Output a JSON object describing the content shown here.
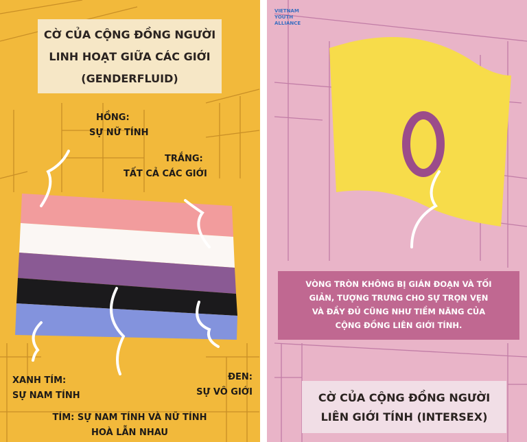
{
  "logo": [
    "VIETNAM",
    "YOUTH",
    "ALLIANCE"
  ],
  "left": {
    "title": [
      "CỜ CỦA CỘNG ĐỒNG NGƯỜI",
      "LINH HOẠT GIỮA CÁC GIỚI",
      "(GENDERFLUID)"
    ],
    "labels": [
      {
        "head": "HỒNG:",
        "text": [
          "SỰ NỮ TÍNH"
        ]
      },
      {
        "head": "TRẮNG:",
        "text": [
          "TẤT CẢ CÁC GIỚI"
        ]
      },
      {
        "head": "XANH TÍM:",
        "text": [
          "SỰ NAM TÍNH"
        ]
      },
      {
        "head": "ĐEN:",
        "text": [
          "SỰ VÔ GIỚI"
        ]
      },
      {
        "head": "TÍM: SỰ NAM TÍNH VÀ NỮ TÍNH",
        "text": [
          "HOÀ LẪN NHAU"
        ]
      }
    ]
  },
  "right": {
    "description": [
      "VÒNG TRÒN KHÔNG BỊ GIÁN ĐOẠN VÀ TỐI",
      "GIẢN, TƯỢNG TRƯNG CHO SỰ TRỌN VẸN",
      "VÀ ĐẦY ĐỦ CŨNG NHƯ TIỀM NĂNG CỦA",
      "CỘNG ĐỒNG LIÊN GIỚI TÍNH."
    ],
    "title": [
      "CỜ CỦA CỘNG ĐỒNG NGƯỜI",
      "LIÊN GIỚI TÍNH (INTERSEX)"
    ]
  }
}
